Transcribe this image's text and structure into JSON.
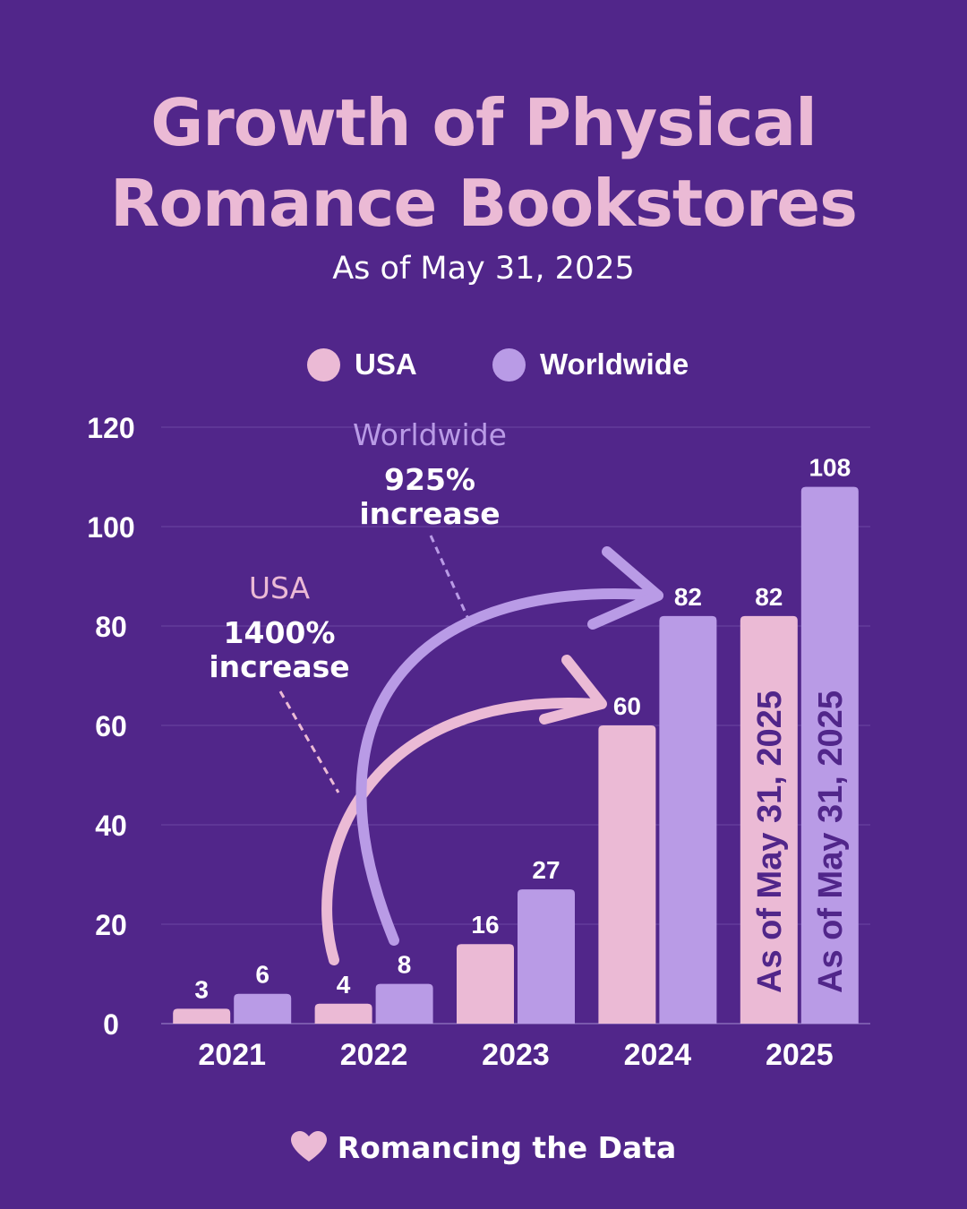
{
  "title": [
    "Growth of Physical",
    "Romance Bookstores"
  ],
  "subtitle": "As of May 31, 2025",
  "footer": {
    "label": "Romancing the Data",
    "icon": "heart-icon"
  },
  "colors": {
    "background": "#51268a",
    "usa": "#ebbad5",
    "worldwide": "#b99be6",
    "dark_label": "#51268a"
  },
  "chart_data": {
    "type": "bar",
    "categories": [
      "2021",
      "2022",
      "2023",
      "2024",
      "2025"
    ],
    "series": [
      {
        "name": "USA",
        "values": [
          3,
          4,
          16,
          60,
          82
        ]
      },
      {
        "name": "Worldwide",
        "values": [
          6,
          8,
          27,
          82,
          108
        ]
      }
    ],
    "ylim": [
      0,
      120
    ],
    "yticks": [
      0,
      20,
      40,
      60,
      80,
      100,
      120
    ],
    "grid": true,
    "legend": "top-center",
    "bar_note": "As of May 31, 2025",
    "annotations": [
      {
        "series": "USA",
        "title": "USA",
        "lines": [
          "1400%",
          "increase"
        ],
        "from": "2022",
        "to": "2024"
      },
      {
        "series": "Worldwide",
        "title": "Worldwide",
        "lines": [
          "925%",
          "increase"
        ],
        "from": "2022",
        "to": "2024"
      }
    ]
  }
}
